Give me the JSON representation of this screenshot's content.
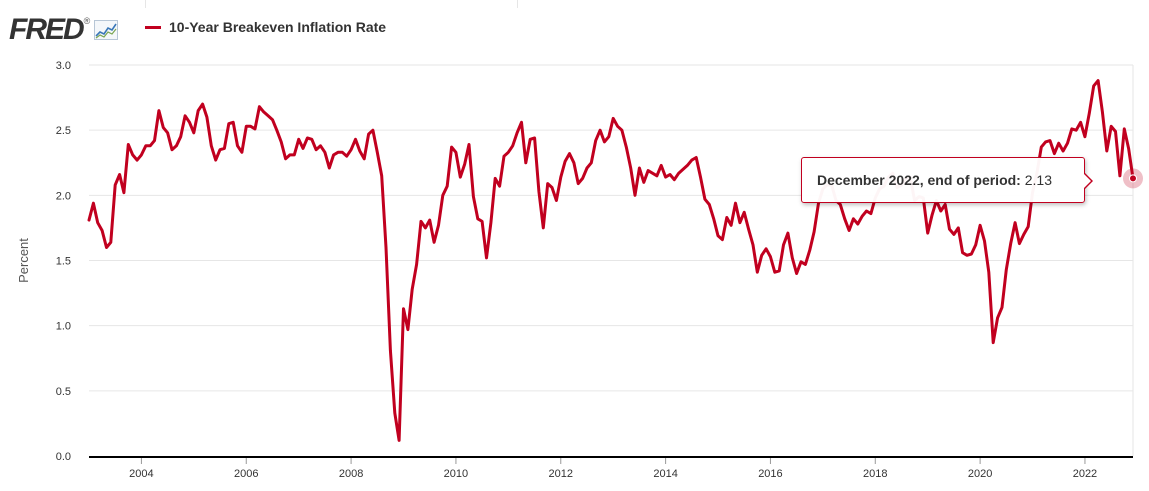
{
  "header": {
    "logo_text": "FRED",
    "logo_reg": "®",
    "series_name": "10-Year Breakeven Inflation Rate"
  },
  "tooltip": {
    "key": "December 2022, end of period:",
    "value": "2.13"
  },
  "colors": {
    "series": "#c1001f",
    "grid": "#e6e6e6",
    "axis": "#000000"
  },
  "chart_data": {
    "type": "line",
    "title": "",
    "xlabel": "",
    "ylabel": "Percent",
    "ylim": [
      0,
      3
    ],
    "yticks": [
      "0.0",
      "0.5",
      "1.0",
      "1.5",
      "2.0",
      "2.5",
      "3.0"
    ],
    "xticks": [
      "2004",
      "2006",
      "2008",
      "2010",
      "2012",
      "2014",
      "2016",
      "2018",
      "2020",
      "2022"
    ],
    "x_start": "2003-01",
    "x_end": "2022-12",
    "frequency": "monthly",
    "grid": true,
    "legend": "top-left",
    "series": [
      {
        "name": "10-Year Breakeven Inflation Rate",
        "values": [
          1.81,
          1.94,
          1.79,
          1.73,
          1.6,
          1.64,
          2.08,
          2.16,
          2.02,
          2.39,
          2.31,
          2.27,
          2.31,
          2.38,
          2.38,
          2.42,
          2.65,
          2.52,
          2.48,
          2.35,
          2.38,
          2.45,
          2.61,
          2.56,
          2.48,
          2.65,
          2.7,
          2.6,
          2.38,
          2.27,
          2.35,
          2.36,
          2.55,
          2.56,
          2.38,
          2.33,
          2.53,
          2.53,
          2.51,
          2.68,
          2.64,
          2.61,
          2.58,
          2.5,
          2.41,
          2.28,
          2.31,
          2.31,
          2.43,
          2.36,
          2.44,
          2.43,
          2.35,
          2.38,
          2.33,
          2.21,
          2.31,
          2.33,
          2.33,
          2.3,
          2.35,
          2.43,
          2.34,
          2.28,
          2.47,
          2.5,
          2.33,
          2.15,
          1.6,
          0.81,
          0.33,
          0.12,
          1.13,
          0.97,
          1.28,
          1.47,
          1.8,
          1.75,
          1.81,
          1.64,
          1.77,
          2.0,
          2.07,
          2.37,
          2.33,
          2.14,
          2.24,
          2.39,
          1.99,
          1.82,
          1.8,
          1.52,
          1.79,
          2.13,
          2.07,
          2.3,
          2.33,
          2.38,
          2.48,
          2.56,
          2.25,
          2.43,
          2.44,
          2.03,
          1.75,
          2.09,
          2.06,
          1.96,
          2.14,
          2.26,
          2.32,
          2.25,
          2.09,
          2.13,
          2.21,
          2.25,
          2.42,
          2.5,
          2.41,
          2.45,
          2.59,
          2.53,
          2.5,
          2.37,
          2.21,
          2.0,
          2.21,
          2.1,
          2.19,
          2.17,
          2.15,
          2.23,
          2.14,
          2.16,
          2.12,
          2.17,
          2.2,
          2.23,
          2.27,
          2.29,
          2.14,
          1.97,
          1.93,
          1.82,
          1.69,
          1.66,
          1.83,
          1.77,
          1.94,
          1.79,
          1.87,
          1.74,
          1.62,
          1.41,
          1.54,
          1.59,
          1.53,
          1.41,
          1.42,
          1.62,
          1.71,
          1.52,
          1.4,
          1.49,
          1.47,
          1.58,
          1.72,
          1.94,
          2.05,
          2.08,
          2.08,
          1.96,
          1.93,
          1.82,
          1.73,
          1.82,
          1.78,
          1.84,
          1.88,
          1.86,
          1.98,
          2.05,
          2.07,
          2.14,
          2.17,
          2.06,
          2.08,
          2.13,
          2.14,
          1.96,
          1.99,
          1.98,
          1.71,
          1.85,
          1.96,
          1.88,
          1.93,
          1.74,
          1.7,
          1.75,
          1.56,
          1.54,
          1.55,
          1.62,
          1.77,
          1.65,
          1.41,
          0.87,
          1.06,
          1.14,
          1.43,
          1.63,
          1.79,
          1.63,
          1.7,
          1.76,
          2.02,
          2.17,
          2.37,
          2.41,
          2.42,
          2.32,
          2.4,
          2.34,
          2.4,
          2.51,
          2.5,
          2.56,
          2.45,
          2.63,
          2.84,
          2.88,
          2.64,
          2.34,
          2.53,
          2.49,
          2.15,
          2.51,
          2.36,
          2.13
        ]
      }
    ]
  }
}
